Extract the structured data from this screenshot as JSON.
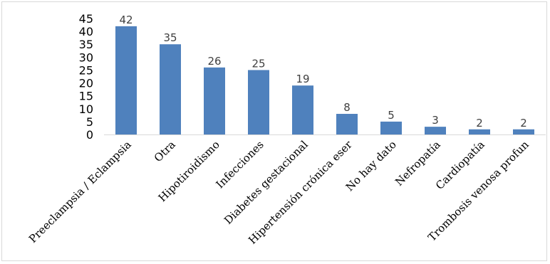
{
  "chart_data": {
    "type": "bar",
    "title": "",
    "xlabel": "",
    "ylabel": "",
    "ylim": [
      0,
      45
    ],
    "yticks": [
      0,
      5,
      10,
      15,
      20,
      25,
      30,
      35,
      40,
      45
    ],
    "grid": false,
    "legend": "none",
    "bar_color": "#4f81bd",
    "categories": [
      "Preeclampsia / Eclampsia",
      "Otra",
      "Hipotiroidismo",
      "Infecciones",
      "Diabetes gestacional",
      "Hipertensión crónica eser",
      "No hay dato",
      "Nefropatía",
      "Cardiopatía",
      "Trombosis venosa profun"
    ],
    "values": [
      42,
      35,
      26,
      25,
      19,
      8,
      5,
      3,
      2,
      2
    ]
  }
}
